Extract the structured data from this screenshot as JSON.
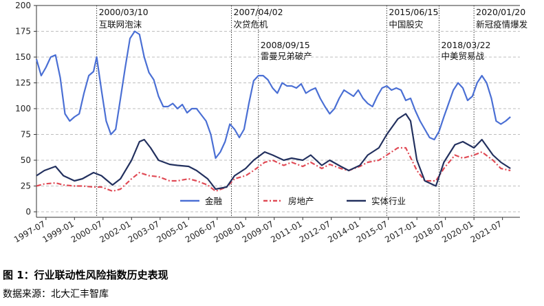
{
  "chart_data": {
    "type": "line",
    "title": "图 1：行业联动性风险指数历史表现",
    "source": "数据来源：北大汇丰智库",
    "xlabel": "",
    "ylabel": "",
    "ylim": [
      0,
      200
    ],
    "yticks": [
      0,
      25,
      50,
      75,
      100,
      125,
      150,
      175,
      200
    ],
    "xlim": [
      "1997-01",
      "2022-06"
    ],
    "xticks": [
      "1997-07",
      "1999-01",
      "2000-07",
      "2002-01",
      "2003-07",
      "2005-01",
      "2006-07",
      "2008-01",
      "2009-07",
      "2011-01",
      "2012-07",
      "2014-01",
      "2015-07",
      "2017-01",
      "2018-07",
      "2020-01",
      "2021-07"
    ],
    "grid": "horizontal dashed",
    "legend_position": "bottom-center",
    "events": [
      {
        "date": "2000/03/10",
        "label": "互联网泡沫",
        "x": "2000-03"
      },
      {
        "date": "2007/04/02",
        "label": "次贷危机",
        "x": "2007-04"
      },
      {
        "date": "2008/09/15",
        "label": "雷曼兄弟破产",
        "x": "2008-09"
      },
      {
        "date": "2015/06/15",
        "label": "中国股灾",
        "x": "2015-06"
      },
      {
        "date": "2018/03/22",
        "label": "中美贸易战",
        "x": "2018-03"
      },
      {
        "date": "2020/01/20",
        "label": "新冠疫情爆发",
        "x": "2020-01"
      }
    ],
    "series": [
      {
        "name": "金融",
        "color": "#4a6fd4",
        "style": "solid",
        "points": [
          [
            "1997-01",
            148
          ],
          [
            "1997-04",
            132
          ],
          [
            "1997-07",
            140
          ],
          [
            "1997-10",
            150
          ],
          [
            "1998-01",
            152
          ],
          [
            "1998-04",
            130
          ],
          [
            "1998-07",
            95
          ],
          [
            "1998-10",
            88
          ],
          [
            "1999-01",
            92
          ],
          [
            "1999-04",
            95
          ],
          [
            "1999-07",
            115
          ],
          [
            "1999-10",
            132
          ],
          [
            "2000-01",
            136
          ],
          [
            "2000-03",
            150
          ],
          [
            "2000-06",
            118
          ],
          [
            "2000-09",
            88
          ],
          [
            "2000-12",
            75
          ],
          [
            "2001-03",
            80
          ],
          [
            "2001-06",
            110
          ],
          [
            "2001-09",
            140
          ],
          [
            "2001-12",
            168
          ],
          [
            "2002-03",
            175
          ],
          [
            "2002-06",
            172
          ],
          [
            "2002-09",
            150
          ],
          [
            "2002-12",
            135
          ],
          [
            "2003-03",
            128
          ],
          [
            "2003-06",
            112
          ],
          [
            "2003-09",
            102
          ],
          [
            "2003-12",
            102
          ],
          [
            "2004-03",
            105
          ],
          [
            "2004-06",
            100
          ],
          [
            "2004-09",
            104
          ],
          [
            "2004-12",
            96
          ],
          [
            "2005-03",
            100
          ],
          [
            "2005-06",
            100
          ],
          [
            "2005-09",
            94
          ],
          [
            "2005-12",
            88
          ],
          [
            "2006-03",
            75
          ],
          [
            "2006-06",
            52
          ],
          [
            "2006-09",
            58
          ],
          [
            "2006-12",
            68
          ],
          [
            "2007-03",
            85
          ],
          [
            "2007-06",
            80
          ],
          [
            "2007-09",
            72
          ],
          [
            "2007-12",
            80
          ],
          [
            "2008-03",
            105
          ],
          [
            "2008-06",
            127
          ],
          [
            "2008-09",
            132
          ],
          [
            "2008-12",
            132
          ],
          [
            "2009-03",
            128
          ],
          [
            "2009-06",
            120
          ],
          [
            "2009-09",
            115
          ],
          [
            "2009-12",
            125
          ],
          [
            "2010-03",
            122
          ],
          [
            "2010-06",
            122
          ],
          [
            "2010-09",
            120
          ],
          [
            "2010-12",
            124
          ],
          [
            "2011-03",
            115
          ],
          [
            "2011-06",
            118
          ],
          [
            "2011-09",
            120
          ],
          [
            "2011-12",
            110
          ],
          [
            "2012-03",
            102
          ],
          [
            "2012-06",
            95
          ],
          [
            "2012-09",
            100
          ],
          [
            "2012-12",
            110
          ],
          [
            "2013-03",
            118
          ],
          [
            "2013-06",
            115
          ],
          [
            "2013-09",
            112
          ],
          [
            "2013-12",
            118
          ],
          [
            "2014-03",
            110
          ],
          [
            "2014-06",
            105
          ],
          [
            "2014-09",
            102
          ],
          [
            "2014-12",
            112
          ],
          [
            "2015-03",
            120
          ],
          [
            "2015-06",
            122
          ],
          [
            "2015-09",
            118
          ],
          [
            "2015-12",
            120
          ],
          [
            "2016-03",
            118
          ],
          [
            "2016-06",
            108
          ],
          [
            "2016-09",
            110
          ],
          [
            "2016-12",
            98
          ],
          [
            "2017-03",
            88
          ],
          [
            "2017-06",
            80
          ],
          [
            "2017-09",
            72
          ],
          [
            "2017-12",
            70
          ],
          [
            "2018-03",
            78
          ],
          [
            "2018-06",
            92
          ],
          [
            "2018-09",
            105
          ],
          [
            "2018-12",
            118
          ],
          [
            "2019-03",
            125
          ],
          [
            "2019-06",
            120
          ],
          [
            "2019-09",
            108
          ],
          [
            "2019-12",
            112
          ],
          [
            "2020-03",
            125
          ],
          [
            "2020-06",
            132
          ],
          [
            "2020-09",
            125
          ],
          [
            "2020-12",
            110
          ],
          [
            "2021-03",
            88
          ],
          [
            "2021-06",
            85
          ],
          [
            "2021-09",
            88
          ],
          [
            "2021-12",
            92
          ]
        ]
      },
      {
        "name": "房地产",
        "color": "#e04a55",
        "style": "dashdot",
        "points": [
          [
            "1997-01",
            25
          ],
          [
            "1997-06",
            27
          ],
          [
            "1998-01",
            28
          ],
          [
            "1998-06",
            26
          ],
          [
            "1999-01",
            25
          ],
          [
            "1999-06",
            25
          ],
          [
            "2000-01",
            24
          ],
          [
            "2000-06",
            24
          ],
          [
            "2001-01",
            20
          ],
          [
            "2001-06",
            22
          ],
          [
            "2002-01",
            32
          ],
          [
            "2002-06",
            38
          ],
          [
            "2002-12",
            35
          ],
          [
            "2003-06",
            34
          ],
          [
            "2004-01",
            30
          ],
          [
            "2004-06",
            30
          ],
          [
            "2005-01",
            32
          ],
          [
            "2005-06",
            30
          ],
          [
            "2006-01",
            26
          ],
          [
            "2006-06",
            20
          ],
          [
            "2007-01",
            24
          ],
          [
            "2007-06",
            32
          ],
          [
            "2008-01",
            35
          ],
          [
            "2008-06",
            40
          ],
          [
            "2009-01",
            48
          ],
          [
            "2009-06",
            50
          ],
          [
            "2010-01",
            45
          ],
          [
            "2010-06",
            48
          ],
          [
            "2011-01",
            44
          ],
          [
            "2011-06",
            48
          ],
          [
            "2012-01",
            42
          ],
          [
            "2012-06",
            46
          ],
          [
            "2013-01",
            42
          ],
          [
            "2013-06",
            40
          ],
          [
            "2014-01",
            44
          ],
          [
            "2014-06",
            48
          ],
          [
            "2015-01",
            50
          ],
          [
            "2015-06",
            55
          ],
          [
            "2016-01",
            62
          ],
          [
            "2016-06",
            62
          ],
          [
            "2017-01",
            40
          ],
          [
            "2017-06",
            30
          ],
          [
            "2018-01",
            30
          ],
          [
            "2018-06",
            42
          ],
          [
            "2019-01",
            55
          ],
          [
            "2019-06",
            52
          ],
          [
            "2020-01",
            55
          ],
          [
            "2020-06",
            58
          ],
          [
            "2021-01",
            50
          ],
          [
            "2021-06",
            42
          ],
          [
            "2021-12",
            40
          ]
        ]
      },
      {
        "name": "实体行业",
        "color": "#22305e",
        "style": "solid",
        "points": [
          [
            "1997-01",
            35
          ],
          [
            "1997-06",
            40
          ],
          [
            "1998-01",
            44
          ],
          [
            "1998-06",
            35
          ],
          [
            "1999-01",
            30
          ],
          [
            "1999-06",
            32
          ],
          [
            "2000-01",
            38
          ],
          [
            "2000-06",
            35
          ],
          [
            "2001-01",
            26
          ],
          [
            "2001-06",
            32
          ],
          [
            "2002-01",
            50
          ],
          [
            "2002-06",
            68
          ],
          [
            "2002-09",
            70
          ],
          [
            "2003-01",
            62
          ],
          [
            "2003-06",
            50
          ],
          [
            "2004-01",
            46
          ],
          [
            "2004-06",
            45
          ],
          [
            "2005-01",
            44
          ],
          [
            "2005-06",
            40
          ],
          [
            "2006-01",
            32
          ],
          [
            "2006-06",
            22
          ],
          [
            "2007-01",
            24
          ],
          [
            "2007-06",
            35
          ],
          [
            "2008-01",
            42
          ],
          [
            "2008-06",
            50
          ],
          [
            "2009-01",
            58
          ],
          [
            "2009-06",
            55
          ],
          [
            "2010-01",
            50
          ],
          [
            "2010-06",
            52
          ],
          [
            "2011-01",
            50
          ],
          [
            "2011-06",
            55
          ],
          [
            "2012-01",
            45
          ],
          [
            "2012-06",
            50
          ],
          [
            "2013-01",
            44
          ],
          [
            "2013-06",
            40
          ],
          [
            "2014-01",
            45
          ],
          [
            "2014-06",
            55
          ],
          [
            "2015-01",
            62
          ],
          [
            "2015-06",
            75
          ],
          [
            "2016-01",
            90
          ],
          [
            "2016-06",
            95
          ],
          [
            "2016-09",
            88
          ],
          [
            "2017-01",
            50
          ],
          [
            "2017-06",
            30
          ],
          [
            "2018-01",
            25
          ],
          [
            "2018-06",
            48
          ],
          [
            "2019-01",
            65
          ],
          [
            "2019-06",
            68
          ],
          [
            "2020-01",
            62
          ],
          [
            "2020-06",
            70
          ],
          [
            "2021-01",
            55
          ],
          [
            "2021-06",
            48
          ],
          [
            "2021-12",
            42
          ]
        ]
      }
    ]
  }
}
